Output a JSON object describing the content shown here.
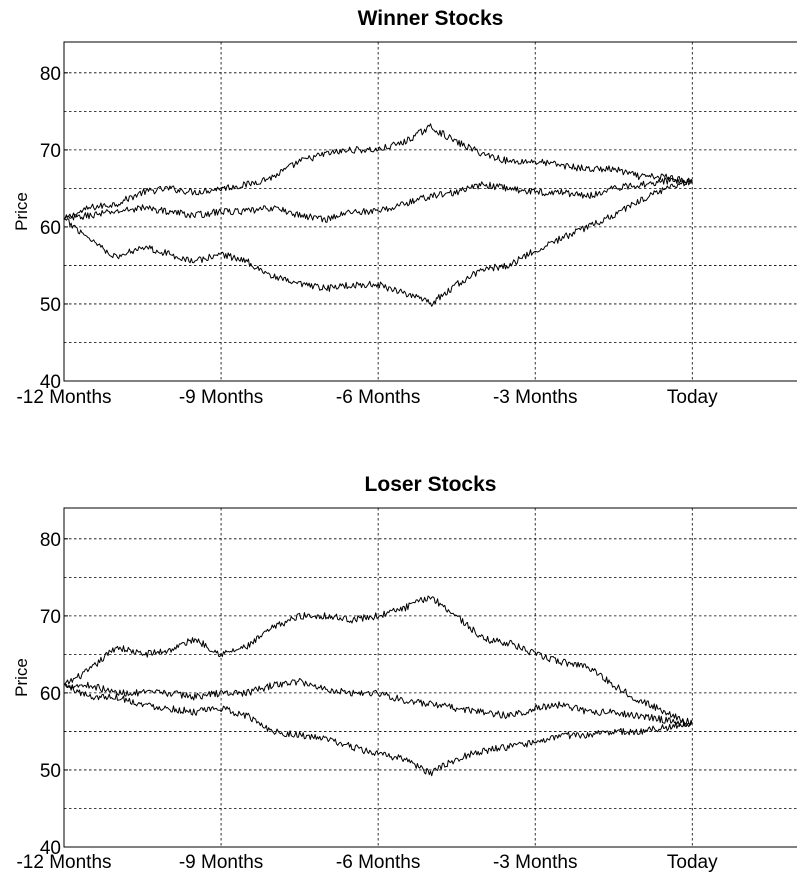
{
  "chart_data": [
    {
      "type": "line",
      "title": "Winner Stocks",
      "ylabel": "Price",
      "x_tick_labels": [
        "-12 Months",
        "-9 Months",
        "-6 Months",
        "-3 Months",
        "Today"
      ],
      "x_unit": "months",
      "xlim": [
        -12,
        2
      ],
      "ylim": [
        40,
        84
      ],
      "y_ticks": [
        40,
        50,
        60,
        70,
        80
      ],
      "grid": true,
      "series": [
        {
          "x": [
            -12,
            -11.5,
            -11,
            -10.5,
            -10,
            -9.5,
            -9,
            -8.5,
            -8,
            -7.5,
            -7,
            -6.5,
            -6,
            -5.5,
            -5,
            -4.5,
            -4,
            -3.5,
            -3,
            -2.5,
            -2,
            -1.5,
            -1,
            -0.5,
            0
          ],
          "values": [
            61,
            62.5,
            63,
            64.5,
            65,
            64.5,
            65,
            65.5,
            66.5,
            68.5,
            69.5,
            70,
            70,
            71,
            73,
            71,
            69.5,
            68.5,
            68.5,
            68,
            67.5,
            67.5,
            66.5,
            66.5,
            66
          ]
        },
        {
          "x": [
            -12,
            -11.5,
            -11,
            -10.5,
            -10,
            -9.5,
            -9,
            -8.5,
            -8,
            -7.5,
            -7,
            -6.5,
            -6,
            -5.5,
            -5,
            -4.5,
            -4,
            -3.5,
            -3,
            -2.5,
            -2,
            -1.5,
            -1,
            -0.5,
            0
          ],
          "values": [
            61,
            61.5,
            62,
            62.5,
            62,
            61.5,
            62,
            62,
            62.5,
            61.5,
            61,
            62,
            62,
            63,
            64,
            64.5,
            65.5,
            65,
            64.5,
            64.5,
            64,
            65,
            65.5,
            66,
            66
          ]
        },
        {
          "x": [
            -12,
            -11.5,
            -11,
            -10.5,
            -10,
            -9.5,
            -9,
            -8.5,
            -8,
            -7.5,
            -7,
            -6.5,
            -6,
            -5.5,
            -5,
            -4.5,
            -4,
            -3.5,
            -3,
            -2.5,
            -2,
            -1.5,
            -1,
            -0.5,
            0
          ],
          "values": [
            61,
            58.5,
            56,
            57.5,
            56.5,
            55.5,
            56.5,
            55.5,
            53.5,
            52.5,
            52,
            52.5,
            52.5,
            51.5,
            50,
            52.5,
            54.5,
            55,
            57,
            58.5,
            60,
            61.5,
            63.5,
            65,
            66
          ]
        }
      ]
    },
    {
      "type": "line",
      "title": "Loser Stocks",
      "ylabel": "Price",
      "x_tick_labels": [
        "-12 Months",
        "-9 Months",
        "-6 Months",
        "-3 Months",
        "Today"
      ],
      "x_unit": "months",
      "xlim": [
        -12,
        2
      ],
      "ylim": [
        40,
        84
      ],
      "y_ticks": [
        40,
        50,
        60,
        70,
        80
      ],
      "grid": true,
      "series": [
        {
          "x": [
            -12,
            -11.5,
            -11,
            -10.5,
            -10,
            -9.5,
            -9,
            -8.5,
            -8,
            -7.5,
            -7,
            -6.5,
            -6,
            -5.5,
            -5,
            -4.5,
            -4,
            -3.5,
            -3,
            -2.5,
            -2,
            -1.5,
            -1,
            -0.5,
            0
          ],
          "values": [
            61,
            63,
            66,
            65,
            65.5,
            67,
            65,
            66,
            68.5,
            70,
            70,
            69.5,
            70,
            71,
            72.5,
            70,
            67,
            66.5,
            65,
            64,
            63.5,
            61,
            59,
            57.5,
            56
          ]
        },
        {
          "x": [
            -12,
            -11.5,
            -11,
            -10.5,
            -10,
            -9.5,
            -9,
            -8.5,
            -8,
            -7.5,
            -7,
            -6.5,
            -6,
            -5.5,
            -5,
            -4.5,
            -4,
            -3.5,
            -3,
            -2.5,
            -2,
            -1.5,
            -1,
            -0.5,
            0
          ],
          "values": [
            61,
            61,
            60,
            60,
            60,
            59.5,
            60,
            60,
            61,
            61.5,
            60.5,
            60,
            60,
            59,
            58.5,
            58,
            57.5,
            57,
            58,
            58.5,
            57.5,
            57.5,
            57,
            56.5,
            56
          ]
        },
        {
          "x": [
            -12,
            -11.5,
            -11,
            -10.5,
            -10,
            -9.5,
            -9,
            -8.5,
            -8,
            -7.5,
            -7,
            -6.5,
            -6,
            -5.5,
            -5,
            -4.5,
            -4,
            -3.5,
            -3,
            -2.5,
            -2,
            -1.5,
            -1,
            -0.5,
            0
          ],
          "values": [
            61,
            59.5,
            59.5,
            58.5,
            58,
            57.5,
            58,
            57,
            55,
            54.5,
            54,
            53,
            52,
            51.5,
            49.5,
            51.5,
            52.5,
            53,
            53.5,
            54.5,
            54.5,
            55,
            55,
            55.5,
            56
          ]
        }
      ]
    }
  ]
}
